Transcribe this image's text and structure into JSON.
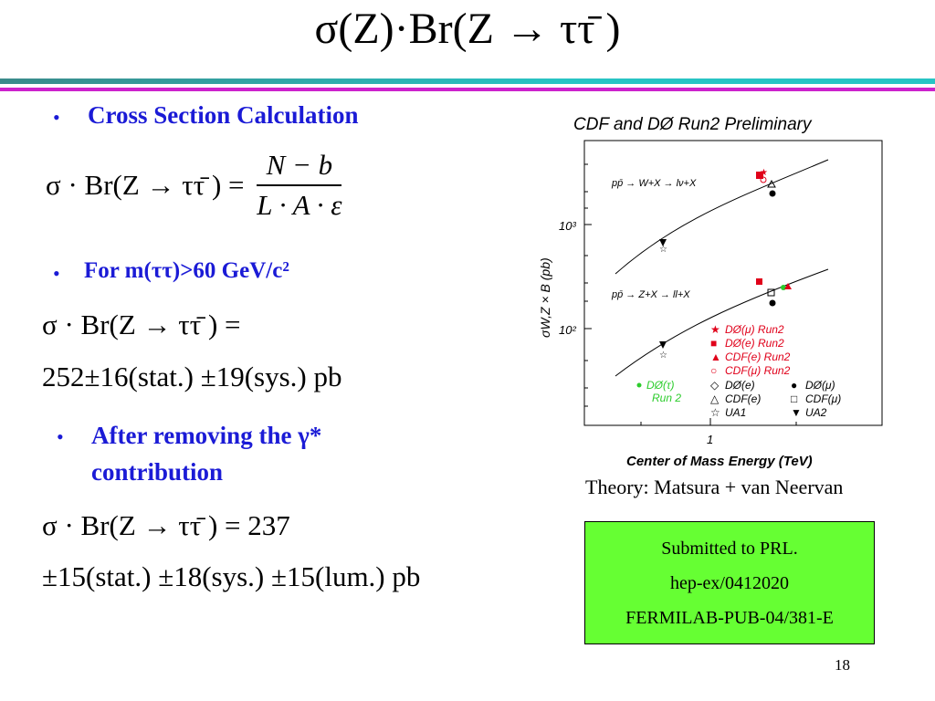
{
  "title": {
    "prefix": "σ(Z)·Br(Z → ττ̄ )"
  },
  "bullets": {
    "b1": "Cross Section Calculation",
    "b2": "For m(ττ)>60 GeV/c²",
    "b3_line1": "After removing the γ*",
    "b3_line2": "contribution"
  },
  "equations": {
    "eq1_lhs": "σ · Br(Z → ττ̄ ) =",
    "eq1_num": "N − b",
    "eq1_den": "L · A · ε",
    "eq2_line1": "σ · Br(Z → ττ̄ ) =",
    "eq2_line2": "252±16(stat.) ±19(sys.) pb",
    "eq3_line1": "σ · Br(Z → ττ̄ ) = 237",
    "eq3_line2": "±15(stat.) ±18(sys.) ±15(lum.) pb"
  },
  "figure": {
    "title": "CDF and DØ Run2 Preliminary",
    "ylabel": "σW,Z × B (pb)",
    "xlabel": "Center of Mass Energy (TeV)",
    "tick_1e3": "10³",
    "tick_1e2": "10²",
    "tick_1": "1",
    "w_label": "pp̄ → W+X → lν+X",
    "z_label": "pp̄ → Z+X → ll+X",
    "legend": [
      {
        "label": "DØ(μ) Run2",
        "color": "#e0001a",
        "symbol": "★"
      },
      {
        "label": "DØ(e) Run2",
        "color": "#e0001a",
        "symbol": "■"
      },
      {
        "label": "CDF(e) Run2",
        "color": "#e0001a",
        "symbol": "▲"
      },
      {
        "label": "CDF(μ) Run2",
        "color": "#e0001a",
        "symbol": "○"
      }
    ],
    "legend2": [
      {
        "label": "DØ(e)",
        "symbol": "◇"
      },
      {
        "label": "DØ(μ)",
        "symbol": "●"
      },
      {
        "label": "CDF(e)",
        "symbol": "△"
      },
      {
        "label": "CDF(μ)",
        "symbol": "□"
      },
      {
        "label": "UA1",
        "symbol": "☆"
      },
      {
        "label": "UA2",
        "symbol": "▼"
      }
    ],
    "tau_label_1": "DØ(τ)",
    "tau_label_2": "Run 2",
    "tau_color": "#2ccc2c"
  },
  "theory_caption": "Theory: Matsura + van Neervan",
  "prl_box": {
    "line1": "Submitted to PRL.",
    "line2": "hep-ex/0412020",
    "line3": "FERMILAB-PUB-04/381-E"
  },
  "page_number": "18",
  "colors": {
    "accent": "#1b1bd6",
    "bar_teal": "#2a9a9a",
    "bar_magenta": "#cc22cc",
    "box_green": "#66ff33"
  }
}
